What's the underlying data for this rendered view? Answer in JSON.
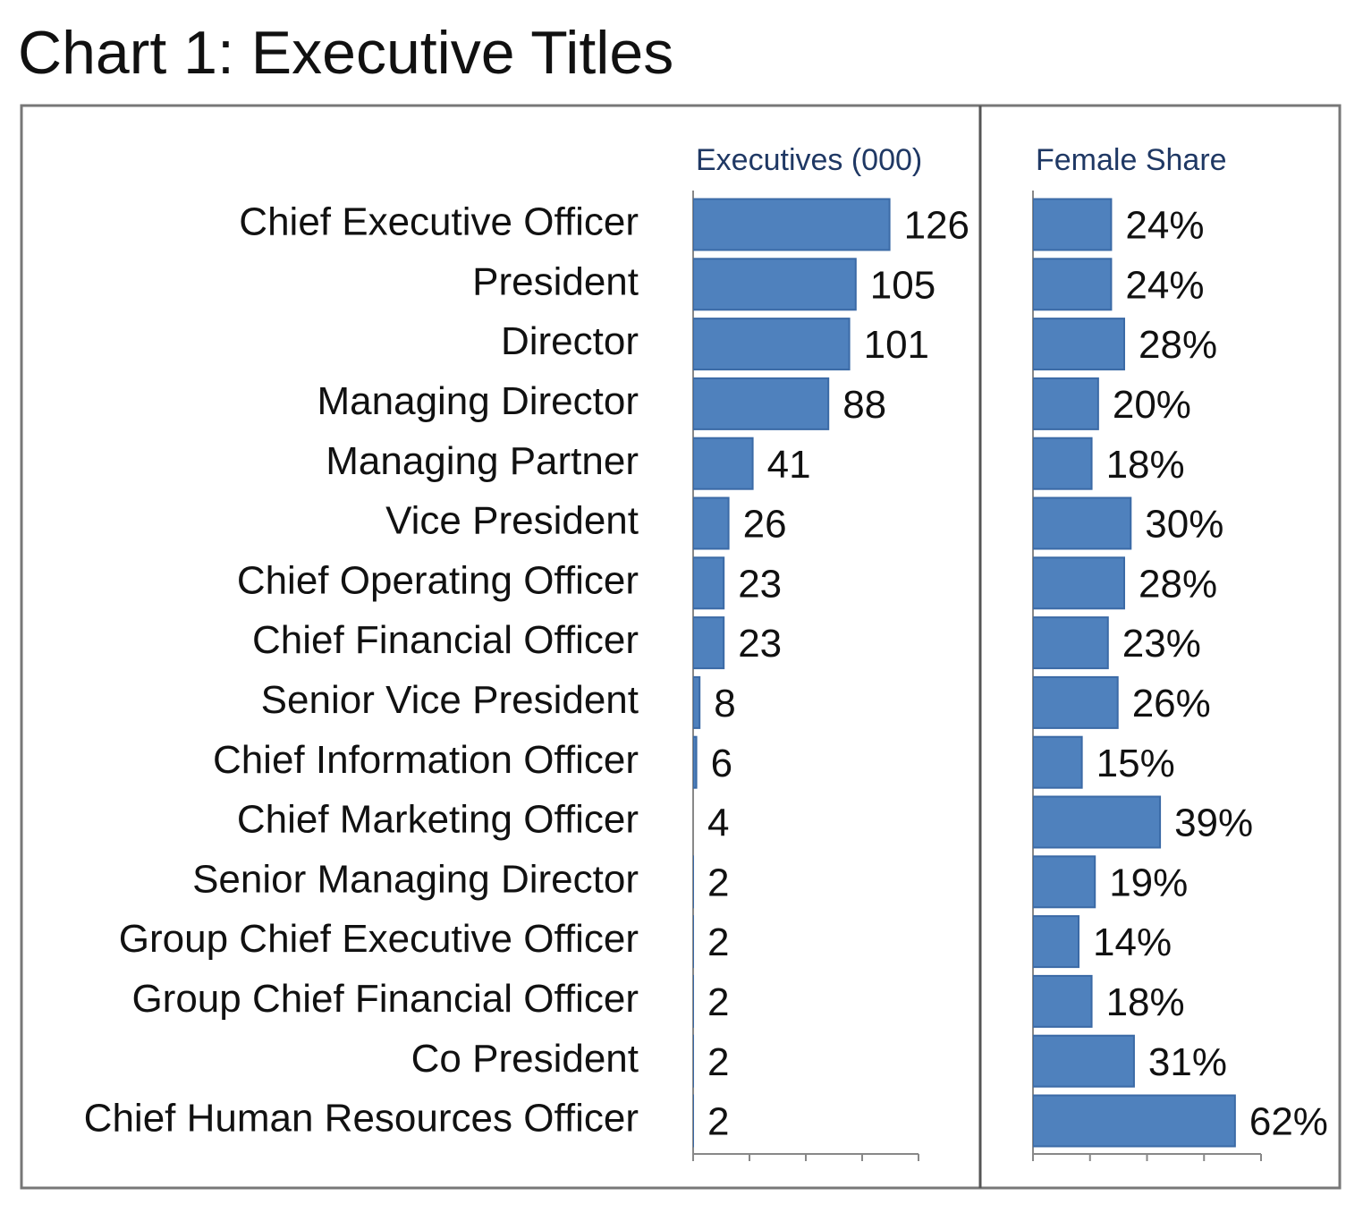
{
  "title": "Chart 1: Executive Titles",
  "chart_data": [
    {
      "type": "hbar",
      "title": "Executives (000)",
      "categories": [
        "Chief Executive Officer",
        "President",
        "Director",
        "Managing Director",
        "Managing Partner",
        "Vice President",
        "Chief Operating Officer",
        "Chief Financial Officer",
        "Senior Vice President",
        "Chief Information Officer",
        "Chief Marketing Officer",
        "Senior Managing Director",
        "Group Chief Executive Officer",
        "Group Chief Financial Officer",
        "Co President",
        "Chief Human Resources Officer"
      ],
      "values": [
        126,
        105,
        101,
        88,
        41,
        26,
        23,
        23,
        8,
        6,
        4,
        2,
        2,
        2,
        2,
        2
      ],
      "color": "#4f81bd",
      "xlim": [
        4,
        144
      ],
      "xticks": [
        4,
        39,
        74,
        109,
        144
      ]
    },
    {
      "type": "hbar",
      "title": "Female Share",
      "values": [
        24,
        24,
        28,
        20,
        18,
        30,
        28,
        23,
        26,
        15,
        39,
        19,
        14,
        18,
        31,
        62
      ],
      "value_labels": [
        "24%",
        "24%",
        "28%",
        "20%",
        "18%",
        "30%",
        "28%",
        "23%",
        "26%",
        "15%",
        "39%",
        "19%",
        "14%",
        "18%",
        "31%",
        "62%"
      ],
      "color": "#4f81bd",
      "xlim": [
        0,
        70
      ],
      "xticks": [
        0,
        17.5,
        35,
        52.5,
        70
      ]
    }
  ]
}
